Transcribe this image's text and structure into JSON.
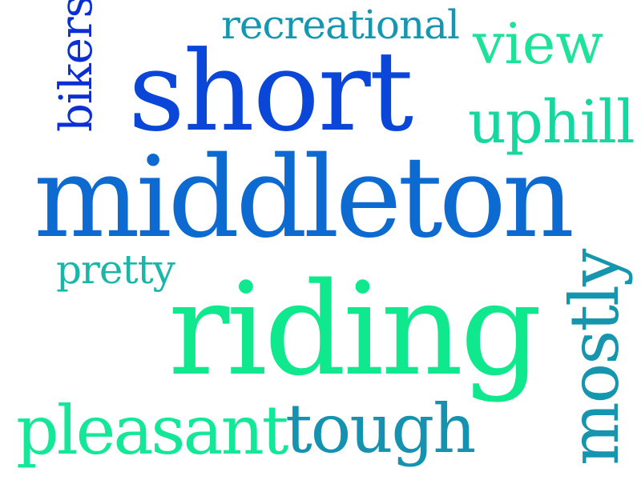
{
  "words": {
    "short": "short",
    "middleton": "middleton",
    "riding": "riding",
    "recreational": "recreational",
    "view": "view",
    "uphill": "uphill",
    "pretty": "pretty",
    "pleasant": "pleasant",
    "tough": "tough",
    "bikers": "bikers",
    "mostly": "mostly"
  },
  "colors": {
    "short": "#0a46d8",
    "middleton": "#0d6ad0",
    "riding": "#10e88e",
    "recreational": "#1597b2",
    "view": "#1fe29a",
    "uphill": "#18d6a0",
    "pretty": "#1ab6aa",
    "pleasant": "#14e898",
    "tough": "#1492b0",
    "bikers": "#0b2fd6",
    "mostly": "#1696ae"
  }
}
